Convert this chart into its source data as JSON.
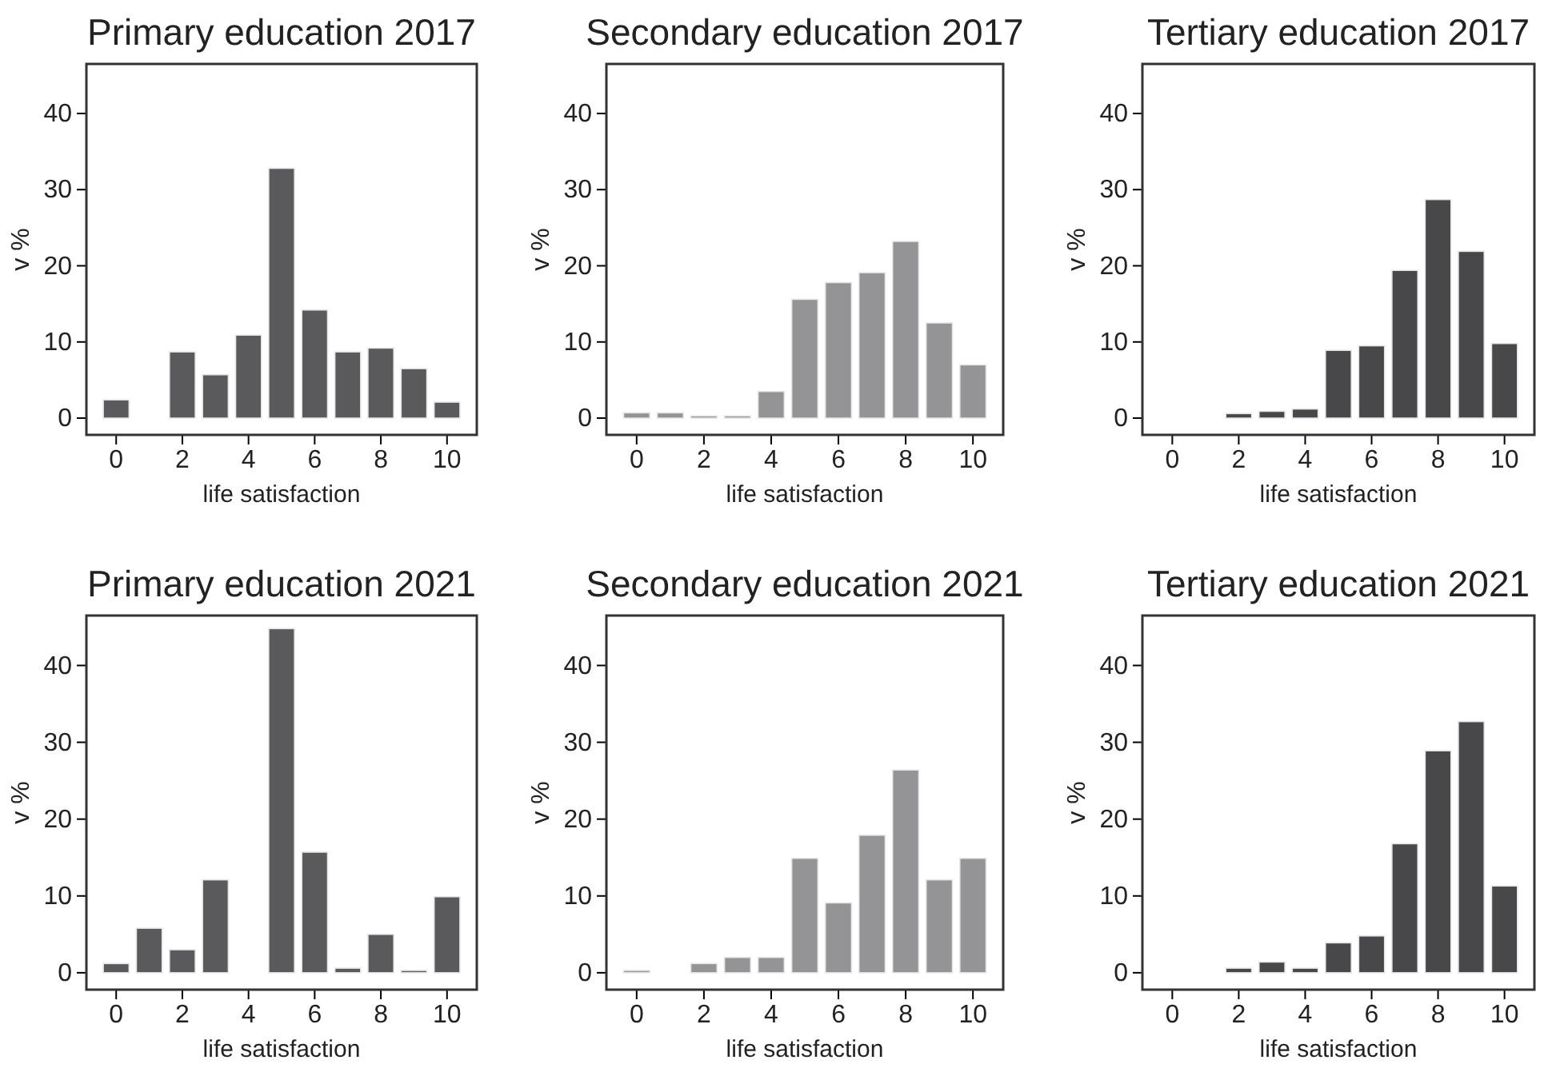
{
  "chart_data": [
    {
      "type": "bar",
      "title": "Primary education 2017",
      "xlabel": "life satisfaction",
      "ylabel": "v %",
      "x": [
        0,
        1,
        2,
        3,
        4,
        5,
        6,
        7,
        8,
        9,
        10
      ],
      "series": [
        {
          "color": "#5a5a5c",
          "values": [
            2.4,
            null,
            8.7,
            5.7,
            10.9,
            32.8,
            14.2,
            8.7,
            9.2,
            6.5,
            2.1
          ]
        }
      ],
      "xlim": [
        -0.9,
        10.9
      ],
      "xticks": [
        0,
        2,
        4,
        6,
        8,
        10
      ],
      "ylim": [
        -2.2,
        46.5
      ],
      "yticks": [
        0,
        10,
        20,
        30,
        40
      ]
    },
    {
      "type": "bar",
      "title": "Secondary education 2017",
      "xlabel": "life satisfaction",
      "ylabel": "v %",
      "x": [
        0,
        1,
        2,
        3,
        4,
        5,
        6,
        7,
        8,
        9,
        10
      ],
      "series": [
        {
          "color": "#949497",
          "values": [
            0.7,
            0.7,
            0.3,
            0.3,
            3.5,
            15.6,
            17.8,
            19.1,
            23.2,
            12.5,
            7.0
          ]
        }
      ],
      "xlim": [
        -0.9,
        10.9
      ],
      "xticks": [
        0,
        2,
        4,
        6,
        8,
        10
      ],
      "ylim": [
        -2.2,
        46.5
      ],
      "yticks": [
        0,
        10,
        20,
        30,
        40
      ]
    },
    {
      "type": "bar",
      "title": "Tertiary education 2017",
      "xlabel": "life satisfaction",
      "ylabel": "v %",
      "series": [
        {
          "color": "#48484a",
          "x": [
            2,
            3,
            4,
            5,
            6,
            7,
            8,
            9,
            10
          ],
          "values": [
            0.6,
            0.9,
            1.2,
            8.9,
            9.5,
            19.4,
            28.7,
            21.9,
            9.8
          ]
        }
      ],
      "xlim": [
        -0.9,
        10.9
      ],
      "xticks": [
        0,
        2,
        4,
        6,
        8,
        10
      ],
      "ylim": [
        -2.2,
        46.5
      ],
      "yticks": [
        0,
        10,
        20,
        30,
        40
      ]
    },
    {
      "type": "bar",
      "title": "Primary education 2021",
      "xlabel": "life satisfaction",
      "ylabel": "v %",
      "x": [
        0,
        1,
        2,
        3,
        4,
        5,
        6,
        7,
        8,
        9,
        10
      ],
      "series": [
        {
          "color": "#5a5a5c",
          "values": [
            1.2,
            5.8,
            3.0,
            12.1,
            null,
            44.8,
            15.7,
            0.6,
            5.0,
            0.3,
            9.9
          ]
        }
      ],
      "xlim": [
        -0.9,
        10.9
      ],
      "xticks": [
        0,
        2,
        4,
        6,
        8,
        10
      ],
      "ylim": [
        -2.2,
        46.5
      ],
      "yticks": [
        0,
        10,
        20,
        30,
        40
      ]
    },
    {
      "type": "bar",
      "title": "Secondary education 2021",
      "xlabel": "life satisfaction",
      "ylabel": "v %",
      "x": [
        0,
        1,
        2,
        3,
        4,
        5,
        6,
        7,
        8,
        9,
        10
      ],
      "series": [
        {
          "color": "#949497",
          "values": [
            0.3,
            null,
            1.2,
            2.0,
            2.0,
            14.9,
            9.1,
            17.9,
            26.4,
            12.1,
            14.9
          ]
        }
      ],
      "xlim": [
        -0.9,
        10.9
      ],
      "xticks": [
        0,
        2,
        4,
        6,
        8,
        10
      ],
      "ylim": [
        -2.2,
        46.5
      ],
      "yticks": [
        0,
        10,
        20,
        30,
        40
      ]
    },
    {
      "type": "bar",
      "title": "Tertiary education 2021",
      "xlabel": "life satisfaction",
      "ylabel": "v %",
      "series": [
        {
          "color": "#48484a",
          "x": [
            2,
            3,
            4,
            5,
            6,
            7,
            8,
            9,
            10
          ],
          "values": [
            0.6,
            1.4,
            0.6,
            3.9,
            4.8,
            16.8,
            28.9,
            32.7,
            11.3
          ]
        }
      ],
      "xlim": [
        -0.9,
        10.9
      ],
      "xticks": [
        0,
        2,
        4,
        6,
        8,
        10
      ],
      "ylim": [
        -2.2,
        46.5
      ],
      "yticks": [
        0,
        10,
        20,
        30,
        40
      ]
    }
  ]
}
